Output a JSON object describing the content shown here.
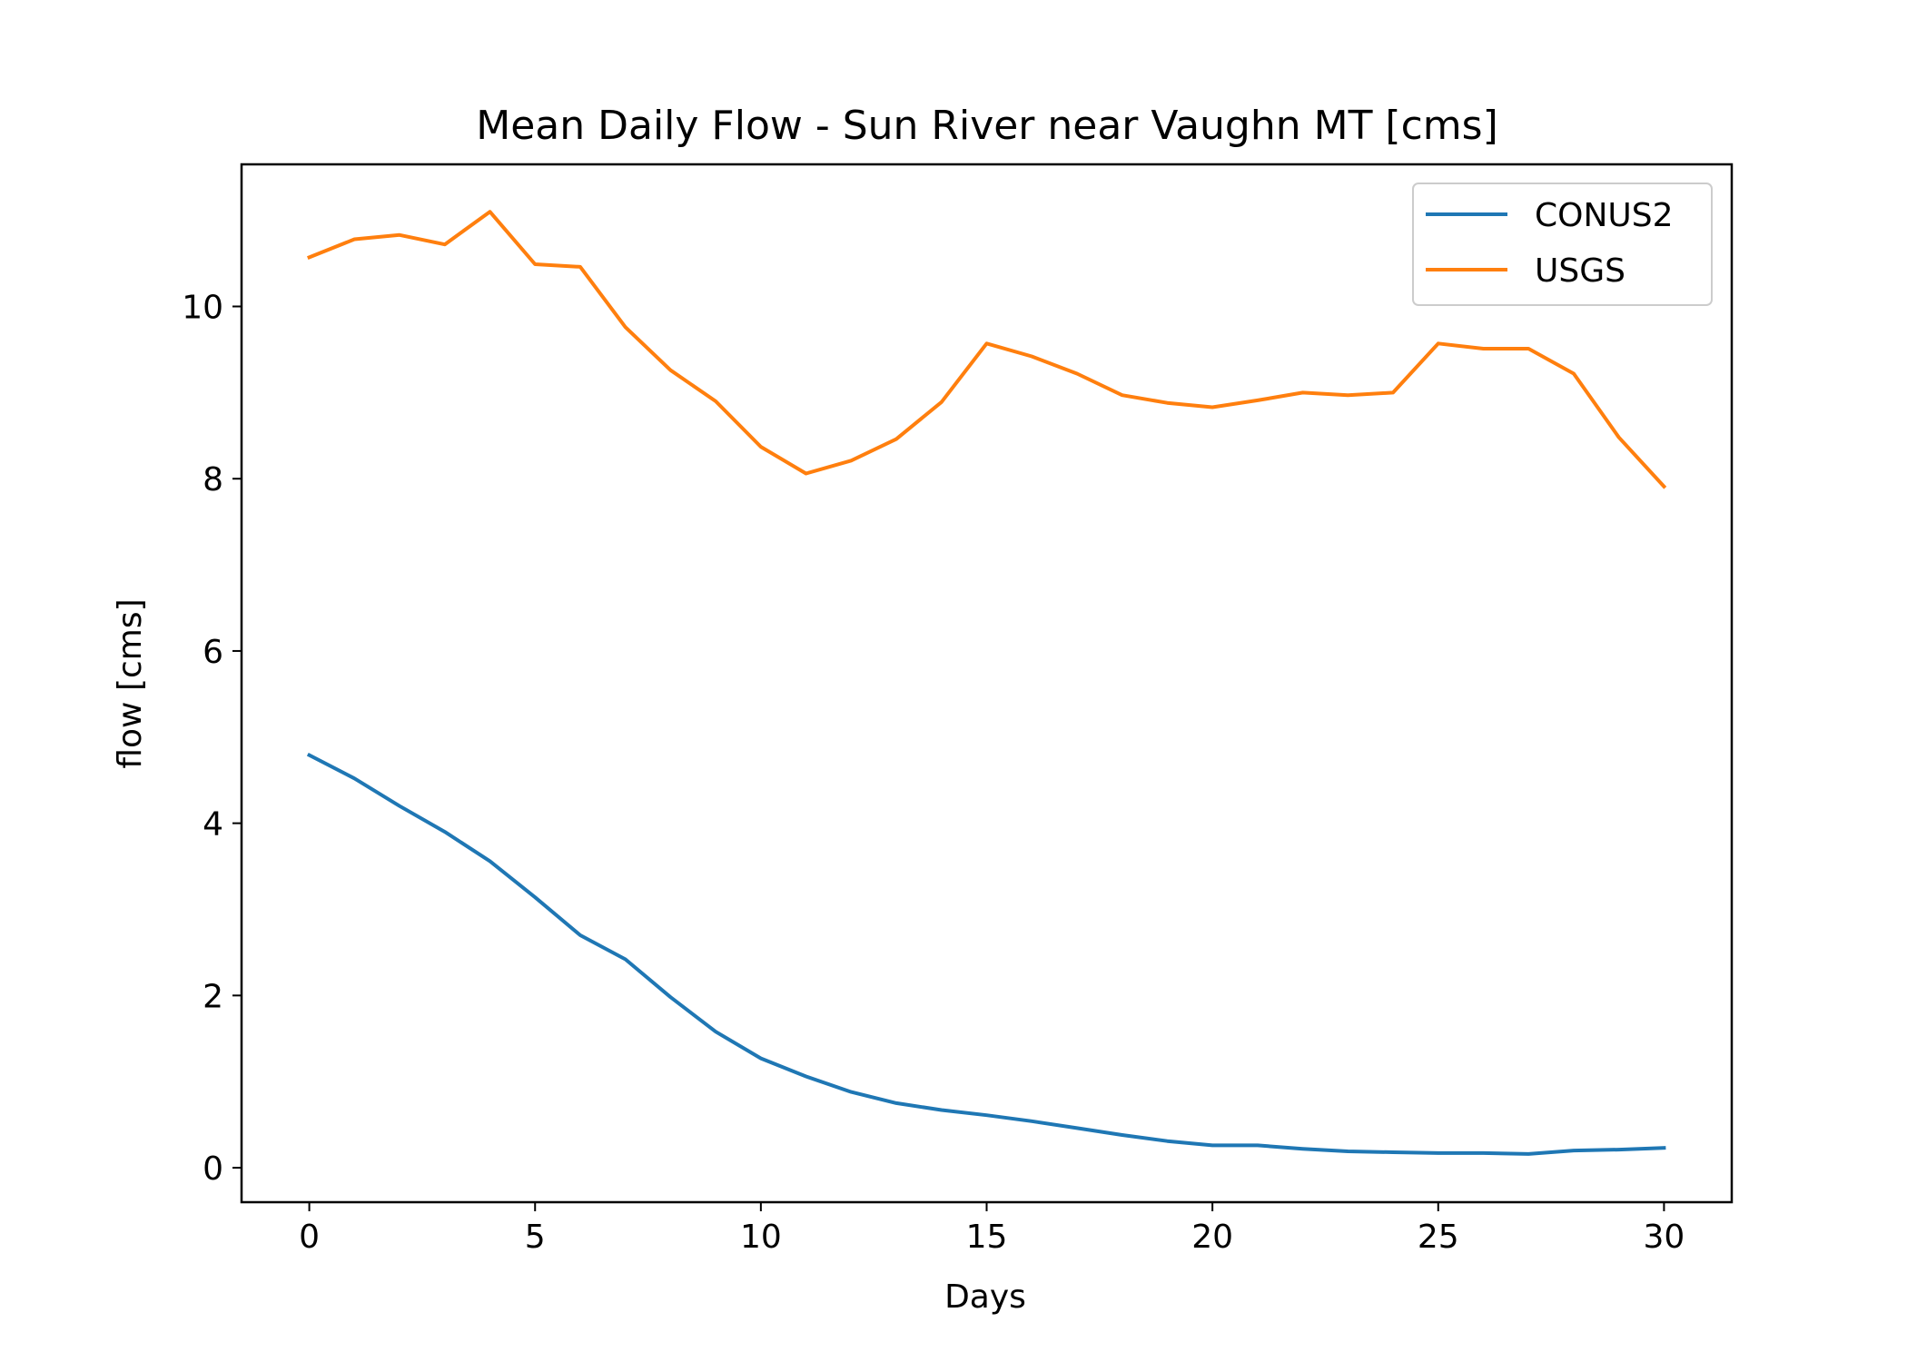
{
  "chart_data": {
    "type": "line",
    "title": "Mean Daily Flow - Sun River near Vaughn MT [cms]",
    "xlabel": "Days",
    "ylabel": "flow [cms]",
    "xlim": [
      -1.5,
      31.5
    ],
    "ylim": [
      -0.4,
      11.65
    ],
    "xticks": [
      0,
      5,
      10,
      15,
      20,
      25,
      30
    ],
    "yticks": [
      0,
      2,
      4,
      6,
      8,
      10
    ],
    "grid": false,
    "legend_position": "upper right",
    "x": [
      0,
      1,
      2,
      3,
      4,
      5,
      6,
      7,
      8,
      9,
      10,
      11,
      12,
      13,
      14,
      15,
      16,
      17,
      18,
      19,
      20,
      21,
      22,
      23,
      24,
      25,
      26,
      27,
      28,
      29,
      30
    ],
    "series": [
      {
        "name": "CONUS2",
        "color": "#1f77b4",
        "values": [
          4.79,
          4.52,
          4.2,
          3.9,
          3.56,
          3.14,
          2.7,
          2.42,
          1.98,
          1.58,
          1.27,
          1.06,
          0.88,
          0.75,
          0.67,
          0.61,
          0.54,
          0.46,
          0.38,
          0.31,
          0.26,
          0.26,
          0.22,
          0.19,
          0.18,
          0.17,
          0.17,
          0.16,
          0.2,
          0.21,
          0.23
        ]
      },
      {
        "name": "USGS",
        "color": "#ff7f0e",
        "values": [
          10.57,
          10.78,
          10.83,
          10.72,
          11.1,
          10.49,
          10.46,
          9.76,
          9.26,
          8.9,
          8.37,
          8.06,
          8.21,
          8.46,
          8.89,
          9.57,
          9.42,
          9.22,
          8.97,
          8.88,
          8.83,
          8.91,
          9.0,
          8.97,
          9.0,
          9.57,
          9.51,
          9.51,
          9.22,
          8.48,
          7.91
        ]
      }
    ]
  }
}
